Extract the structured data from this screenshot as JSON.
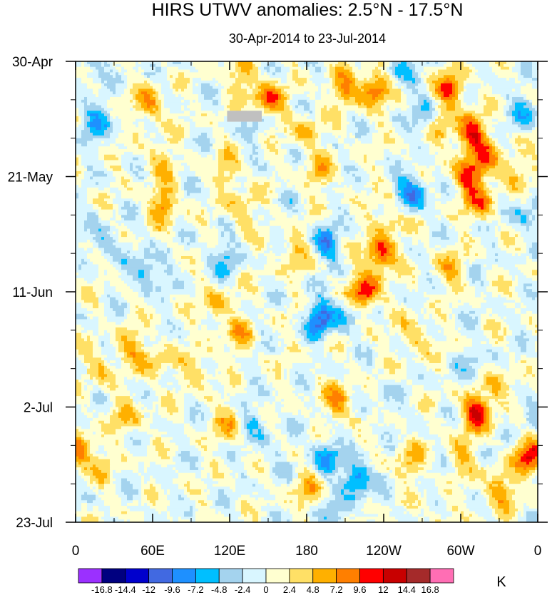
{
  "chart_data": {
    "type": "heatmap",
    "title": "HIRS UTWV anomalies: 2.5°N - 17.5°N",
    "subtitle": "30-Apr-2014 to 23-Jul-2014",
    "xlabel": "",
    "ylabel": "",
    "x_ticks": [
      {
        "lon": 0,
        "label": "0"
      },
      {
        "lon": 60,
        "label": "60E"
      },
      {
        "lon": 120,
        "label": "120E"
      },
      {
        "lon": 180,
        "label": "180"
      },
      {
        "lon": 240,
        "label": "120W"
      },
      {
        "lon": 300,
        "label": "60W"
      },
      {
        "lon": 360,
        "label": "0"
      }
    ],
    "x_range": [
      0,
      360
    ],
    "y_ticks": [
      {
        "day": 0,
        "label": "30-Apr"
      },
      {
        "day": 21,
        "label": "21-May"
      },
      {
        "day": 42,
        "label": "11-Jun"
      },
      {
        "day": 63,
        "label": "2-Jul"
      },
      {
        "day": 84,
        "label": "23-Jul"
      }
    ],
    "y_range_days": [
      0,
      84
    ],
    "y_direction": "time increases downward",
    "colorbar": {
      "unit": "K",
      "levels": [
        "-16.8",
        "-14.4",
        "-12",
        "-9.6",
        "-7.2",
        "-4.8",
        "-2.4",
        "0",
        "2.4",
        "4.8",
        "7.2",
        "9.6",
        "12",
        "14.4",
        "16.8"
      ],
      "colors": [
        "#9b30ff",
        "#000080",
        "#0000cd",
        "#4169e1",
        "#1e90ff",
        "#00bfff",
        "#a4d3ee",
        "#d9f6ff",
        "#ffffd0",
        "#ffe066",
        "#ffb000",
        "#ff7f00",
        "#ff0000",
        "#c80000",
        "#a52a2a",
        "#ff6eb4"
      ]
    },
    "features": [
      {
        "lon": 14,
        "day": 11,
        "value": -7.2
      },
      {
        "lon": 12,
        "day": 0,
        "value": -4.8
      },
      {
        "lon": 58,
        "day": 8,
        "value": 7.2
      },
      {
        "lon": 65,
        "day": 18,
        "value": 4.8
      },
      {
        "lon": 68,
        "day": 26,
        "value": 7.2
      },
      {
        "lon": 20,
        "day": 33,
        "value": -4.8
      },
      {
        "lon": 56,
        "day": 38,
        "value": -7.2
      },
      {
        "lon": 45,
        "day": 52,
        "value": 4.8
      },
      {
        "lon": 18,
        "day": 56,
        "value": 4.8
      },
      {
        "lon": 60,
        "day": 55,
        "value": 4.8
      },
      {
        "lon": 3,
        "day": 71,
        "value": 9.6
      },
      {
        "lon": 40,
        "day": 65,
        "value": 4.8
      },
      {
        "lon": 20,
        "day": 74,
        "value": 2.4
      },
      {
        "lon": 130,
        "day": 3,
        "value": 4.8
      },
      {
        "lon": 150,
        "day": 7,
        "value": 9.6
      },
      {
        "lon": 140,
        "day": 13,
        "value": -2.4
      },
      {
        "lon": 120,
        "day": 20,
        "value": 4.8
      },
      {
        "lon": 130,
        "day": 27,
        "value": 4.8
      },
      {
        "lon": 115,
        "day": 36,
        "value": -4.8
      },
      {
        "lon": 110,
        "day": 45,
        "value": 4.8
      },
      {
        "lon": 130,
        "day": 50,
        "value": 4.8
      },
      {
        "lon": 95,
        "day": 56,
        "value": 4.8
      },
      {
        "lon": 140,
        "day": 66,
        "value": -4.8
      },
      {
        "lon": 120,
        "day": 66,
        "value": 4.8
      },
      {
        "lon": 150,
        "day": 72,
        "value": -2.4
      },
      {
        "lon": 170,
        "day": 35,
        "value": 4.8
      },
      {
        "lon": 195,
        "day": 33,
        "value": -7.2
      },
      {
        "lon": 190,
        "day": 47,
        "value": -9.6
      },
      {
        "lon": 210,
        "day": 46,
        "value": -4.8
      },
      {
        "lon": 225,
        "day": 42,
        "value": 12.0
      },
      {
        "lon": 238,
        "day": 35,
        "value": 12.0
      },
      {
        "lon": 245,
        "day": 28,
        "value": 4.8
      },
      {
        "lon": 210,
        "day": 5,
        "value": 7.2
      },
      {
        "lon": 232,
        "day": 5,
        "value": 9.6
      },
      {
        "lon": 180,
        "day": 13,
        "value": 4.8
      },
      {
        "lon": 190,
        "day": 20,
        "value": 4.8
      },
      {
        "lon": 205,
        "day": 62,
        "value": 7.2
      },
      {
        "lon": 195,
        "day": 72,
        "value": -7.2
      },
      {
        "lon": 220,
        "day": 76,
        "value": -9.6
      },
      {
        "lon": 180,
        "day": 78,
        "value": 4.8
      },
      {
        "lon": 205,
        "day": 83,
        "value": -4.8
      },
      {
        "lon": 240,
        "day": 62,
        "value": -2.4
      },
      {
        "lon": 255,
        "day": 2,
        "value": -4.8
      },
      {
        "lon": 262,
        "day": 24,
        "value": -9.6
      },
      {
        "lon": 272,
        "day": 10,
        "value": -4.8
      },
      {
        "lon": 292,
        "day": 5,
        "value": 9.6
      },
      {
        "lon": 285,
        "day": 12,
        "value": 4.8
      },
      {
        "lon": 308,
        "day": 13,
        "value": 12.0
      },
      {
        "lon": 320,
        "day": 18,
        "value": 7.2
      },
      {
        "lon": 305,
        "day": 21,
        "value": 9.6
      },
      {
        "lon": 315,
        "day": 26,
        "value": 7.2
      },
      {
        "lon": 340,
        "day": 20,
        "value": 4.8
      },
      {
        "lon": 350,
        "day": 9,
        "value": -4.8
      },
      {
        "lon": 350,
        "day": 28,
        "value": -4.8
      },
      {
        "lon": 290,
        "day": 38,
        "value": 4.8
      },
      {
        "lon": 265,
        "day": 50,
        "value": 4.8
      },
      {
        "lon": 310,
        "day": 55,
        "value": -2.4
      },
      {
        "lon": 312,
        "day": 64,
        "value": 12.0
      },
      {
        "lon": 333,
        "day": 60,
        "value": 4.8
      },
      {
        "lon": 355,
        "day": 64,
        "value": -4.8
      },
      {
        "lon": 355,
        "day": 72,
        "value": 12.0
      },
      {
        "lon": 300,
        "day": 72,
        "value": 4.8
      },
      {
        "lon": 330,
        "day": 78,
        "value": 7.2
      },
      {
        "lon": 285,
        "day": 83,
        "value": 2.4
      },
      {
        "lon": 260,
        "day": 73,
        "value": 4.8
      }
    ],
    "missing_region": {
      "lon": [
        118,
        145
      ],
      "day": [
        9,
        11
      ]
    }
  }
}
